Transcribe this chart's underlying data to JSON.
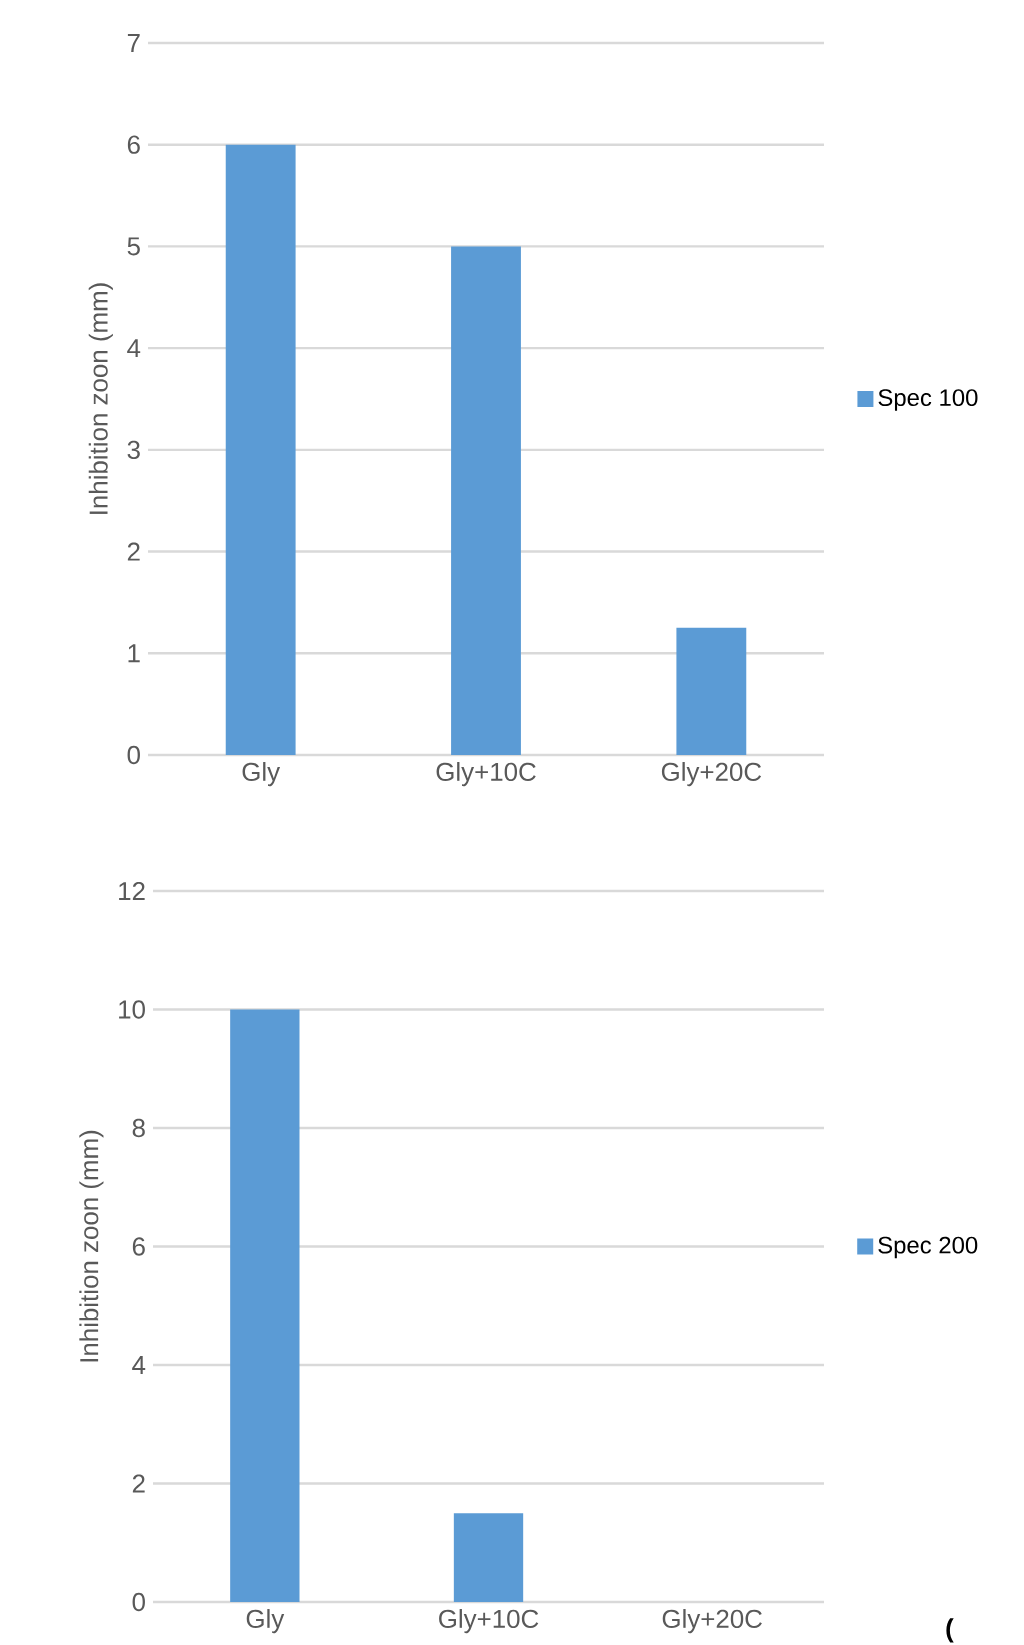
{
  "chart_data": [
    {
      "type": "bar",
      "ylabel": "Inhibition zoon (mm)",
      "categories": [
        "Gly",
        "Gly+10C",
        "Gly+20C"
      ],
      "series": [
        {
          "name": "Spec 100",
          "color": "#5b9bd5",
          "values": [
            6,
            5,
            1.25
          ]
        }
      ],
      "ylim": [
        0,
        7
      ],
      "yticks": [
        0,
        1,
        2,
        3,
        4,
        5,
        6,
        7
      ],
      "grid": "y",
      "legend": "right"
    },
    {
      "type": "bar",
      "ylabel": "Inhibition zoon (mm)",
      "categories": [
        "Gly",
        "Gly+10C",
        "Gly+20C"
      ],
      "series": [
        {
          "name": "Spec 200",
          "color": "#5b9bd5",
          "values": [
            10,
            1.5,
            0
          ]
        }
      ],
      "ylim": [
        0,
        12
      ],
      "yticks": [
        0,
        2,
        4,
        6,
        8,
        10,
        12
      ],
      "grid": "y",
      "legend": "right",
      "annotations": [
        "("
      ]
    }
  ]
}
